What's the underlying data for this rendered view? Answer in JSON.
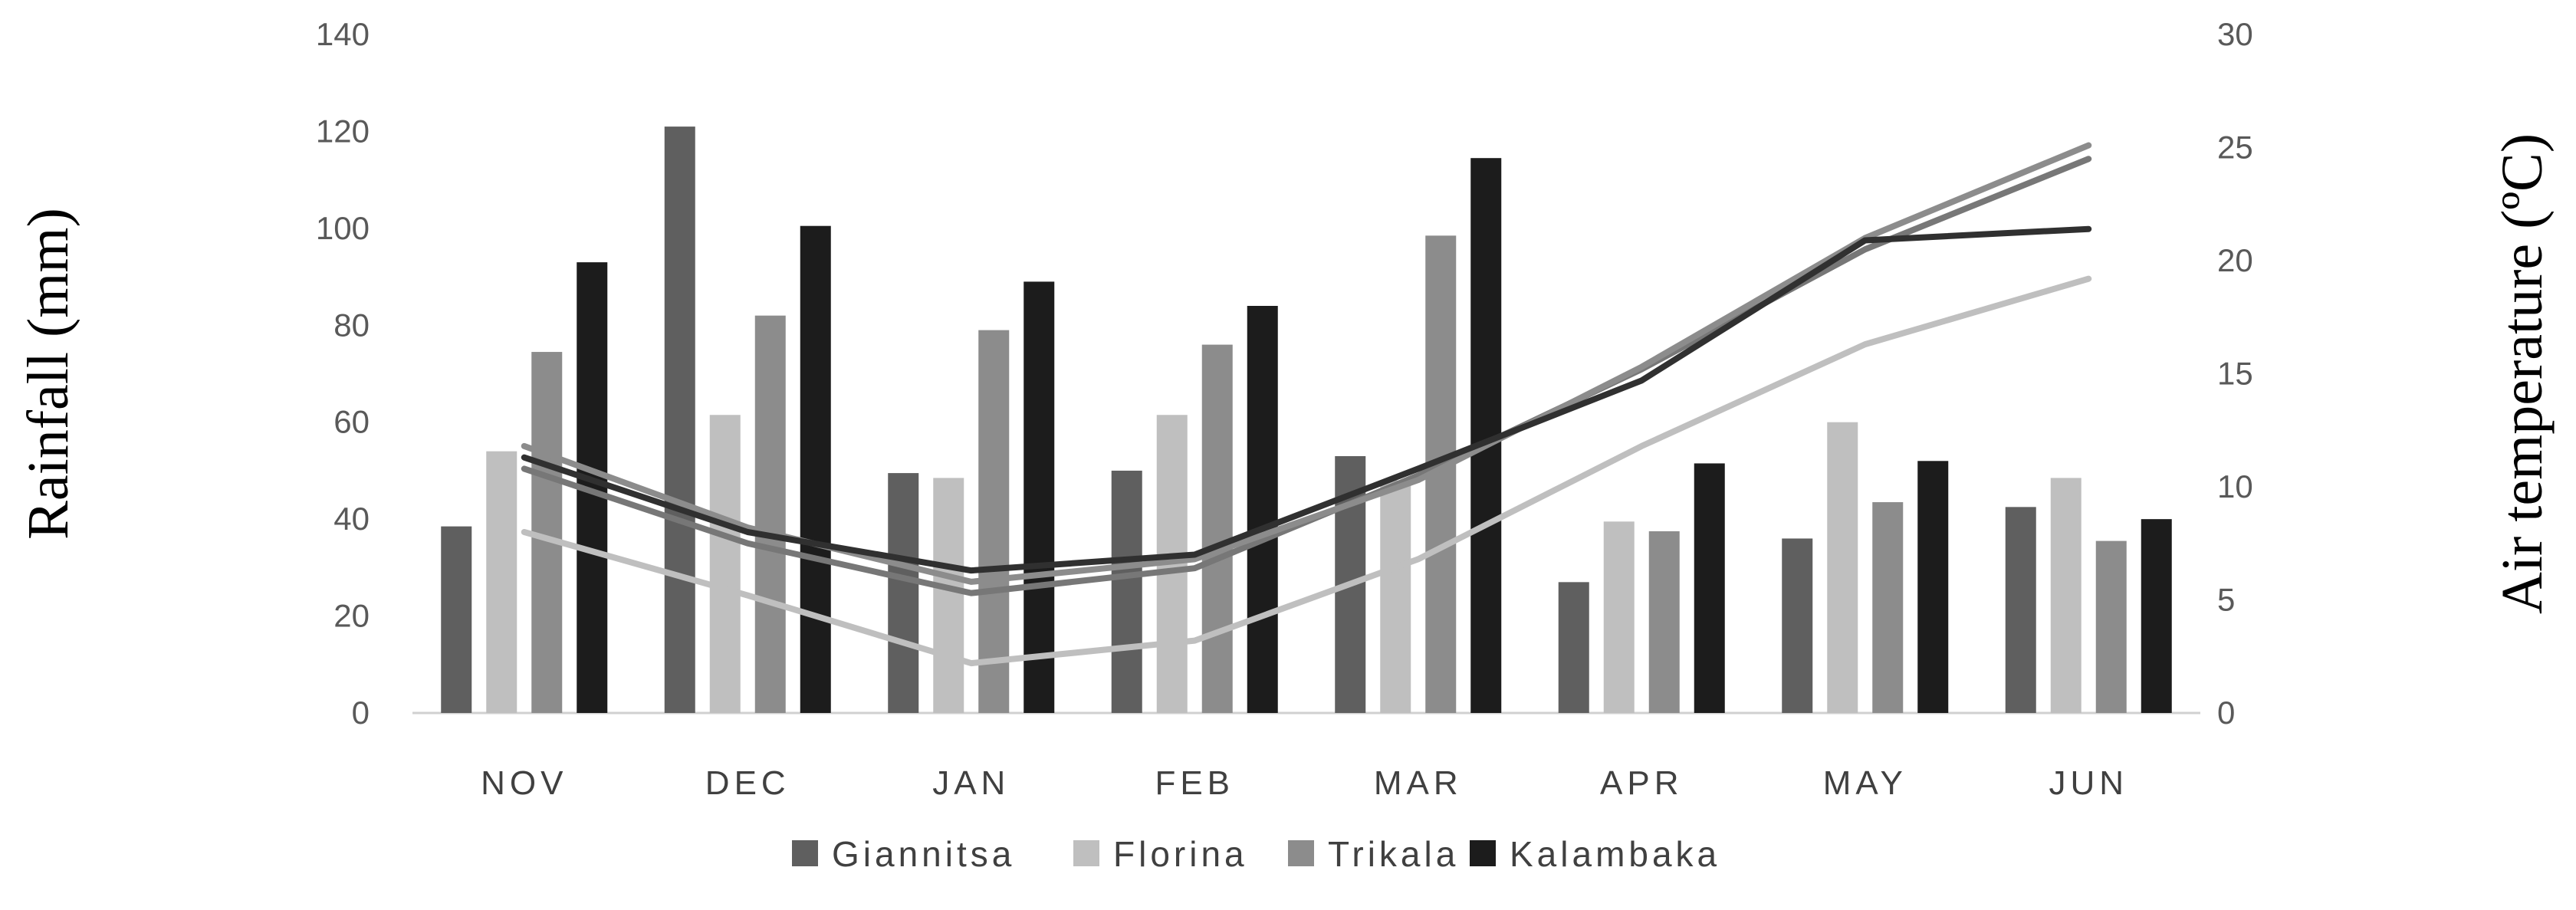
{
  "chart_data": {
    "type": "bar",
    "categories": [
      "NOV",
      "DEC",
      "JAN",
      "FEB",
      "MAR",
      "APR",
      "MAY",
      "JUN"
    ],
    "ylabel": "Rainfall (mm)",
    "y2label": "Air temperature (ºC)",
    "ylim": [
      0,
      140
    ],
    "yticks": [
      0,
      20,
      40,
      60,
      80,
      100,
      120,
      140
    ],
    "y2lim": [
      0,
      30
    ],
    "y2ticks": [
      0,
      5,
      10,
      15,
      20,
      25,
      30
    ],
    "grid": false,
    "legend_position": "bottom",
    "series": [
      {
        "name": "Giannitsa",
        "color": "#5f5f5f",
        "values": [
          38.5,
          121,
          49.5,
          50,
          53,
          27,
          36,
          42.5
        ]
      },
      {
        "name": "Florina",
        "color": "#bfbfbf",
        "values": [
          54,
          61.5,
          48.5,
          61.5,
          48,
          39.5,
          60,
          48.5
        ]
      },
      {
        "name": "Trikala",
        "color": "#8c8c8c",
        "values": [
          74.5,
          82,
          79,
          76,
          98.5,
          37.5,
          43.5,
          35.5
        ]
      },
      {
        "name": "Kalambaka",
        "color": "#1c1c1c",
        "values": [
          93,
          100.5,
          89,
          84,
          114.5,
          51.5,
          52,
          40
        ]
      }
    ],
    "line_series": [
      {
        "color": "#bfbfbf",
        "values": [
          8,
          5.2,
          2.2,
          3.2,
          6.8,
          11.8,
          16.3,
          19.2
        ]
      },
      {
        "color": "#777777",
        "values": [
          10.8,
          7.5,
          5.3,
          6.4,
          10.5,
          15.2,
          20.5,
          24.5
        ]
      },
      {
        "color": "#8c8c8c",
        "values": [
          11.8,
          8.2,
          5.8,
          6.8,
          10.3,
          15.3,
          21,
          25.1
        ]
      },
      {
        "color": "#303030",
        "values": [
          11.3,
          8,
          6.3,
          7,
          10.8,
          14.7,
          20.9,
          21.4
        ]
      }
    ]
  }
}
